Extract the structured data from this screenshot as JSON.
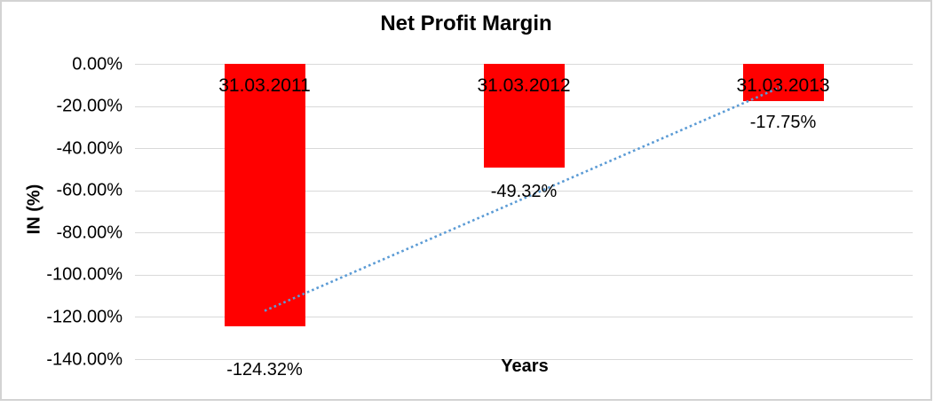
{
  "chart_data": {
    "type": "bar",
    "title": "Net Profit Margin",
    "xlabel": "Years",
    "ylabel": "IN (%)",
    "categories": [
      "31.03.2011",
      "31.03.2012",
      "31.03.2013"
    ],
    "values": [
      -124.32,
      -49.32,
      -17.75
    ],
    "value_labels": [
      "-124.32%",
      "-49.32%",
      "-17.75%"
    ],
    "ylim": [
      -140,
      0
    ],
    "ytick_step": 20,
    "ytick_labels": [
      "0.00%",
      "-20.00%",
      "-40.00%",
      "-60.00%",
      "-80.00%",
      "-100.00%",
      "-120.00%",
      "-140.00%"
    ],
    "grid": true,
    "legend": "none",
    "bar_color": "#FF0000",
    "grid_color": "#D9D9D9",
    "text_color": "#000000",
    "frame_border_color": "#D3D3D3",
    "trendline": {
      "type": "linear",
      "style": "dotted",
      "color": "#5B9BD5",
      "start_value": -117.1,
      "end_value": -10.5
    }
  }
}
